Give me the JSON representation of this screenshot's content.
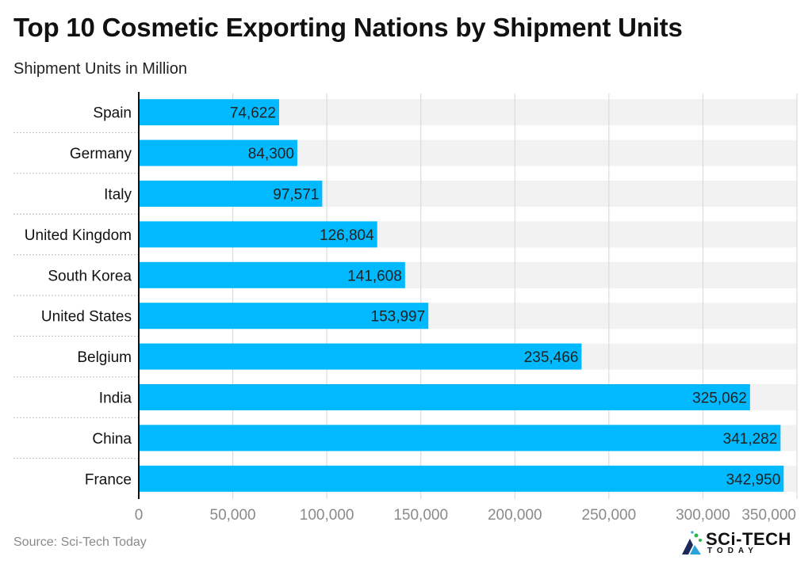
{
  "title": "Top 10 Cosmetic Exporting Nations by Shipment Units",
  "subtitle": "Shipment Units in Million",
  "source": "Source: Sci-Tech Today",
  "logo": {
    "text": "SCi-TECH",
    "sub": "TODAY",
    "icon": "sci-tech-logo-icon"
  },
  "colors": {
    "bar": "#00b9ff",
    "band": "#f2f2f2",
    "grid": "#d6d6d6",
    "axis": "#111111",
    "separator": "#bdbdbd"
  },
  "chart_data": {
    "type": "bar",
    "orientation": "horizontal",
    "categories": [
      "Spain",
      "Germany",
      "Italy",
      "United Kingdom",
      "South Korea",
      "United States",
      "Belgium",
      "India",
      "China",
      "France"
    ],
    "values": [
      74622,
      84300,
      97571,
      126804,
      141608,
      153997,
      235466,
      325062,
      341282,
      342950
    ],
    "value_labels": [
      "74,622",
      "84,300",
      "97,571",
      "126,804",
      "141,608",
      "153,997",
      "235,466",
      "325,062",
      "341,282",
      "342,950"
    ],
    "xticks": [
      0,
      50000,
      100000,
      150000,
      200000,
      250000,
      300000,
      350000
    ],
    "xtick_labels": [
      "0",
      "50,000",
      "100,000",
      "150,000",
      "200,000",
      "250,000",
      "300,000",
      "350,000"
    ],
    "xlim": [
      0,
      350000
    ],
    "grid": true,
    "legend": "none"
  }
}
